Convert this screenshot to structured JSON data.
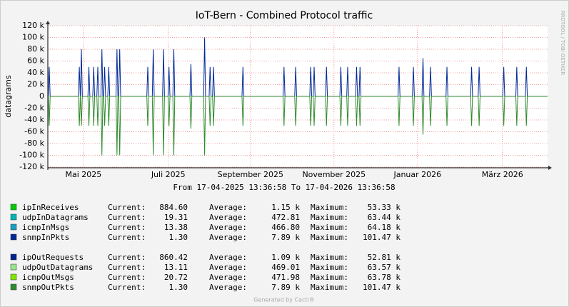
{
  "chart_data": {
    "type": "line",
    "title": "IoT-Bern - Combined Protocol traffic",
    "subtitle": "From 17-04-2025 13:36:58 To 17-04-2026 13:36:58",
    "y_label": "datagrams",
    "watermark": "RRDTOOL / TOBI OETIKER",
    "footer": "Generated by Cacti®",
    "legend_labels": {
      "current": "Current:",
      "average": "Average:",
      "maximum": "Maximum:"
    },
    "grid": true,
    "xlim": [
      0,
      365
    ],
    "xticks": [
      {
        "value": 26,
        "label": "Mai 2025"
      },
      {
        "value": 88,
        "label": "Juli 2025"
      },
      {
        "value": 148,
        "label": "September 2025"
      },
      {
        "value": 209,
        "label": "November 2025"
      },
      {
        "value": 270,
        "label": "Januar 2026"
      },
      {
        "value": 332,
        "label": "März 2026"
      }
    ],
    "ylim": [
      -120000,
      120000
    ],
    "yticks": [
      {
        "value": -120000,
        "label": "-120 k"
      },
      {
        "value": -100000,
        "label": "-100 k"
      },
      {
        "value": -80000,
        "label": "-80 k"
      },
      {
        "value": -60000,
        "label": "-60 k"
      },
      {
        "value": -40000,
        "label": "-40 k"
      },
      {
        "value": -20000,
        "label": "-20 k"
      },
      0,
      {
        "value": 20000,
        "label": "20 k"
      },
      {
        "value": 40000,
        "label": "40 k"
      },
      {
        "value": 60000,
        "label": "60 k"
      },
      {
        "value": 80000,
        "label": "80 k"
      },
      {
        "value": 100000,
        "label": "100 k"
      },
      {
        "value": 120000,
        "label": "120 k"
      }
    ],
    "x": [
      0,
      0.3,
      1,
      1.7,
      22.3,
      23,
      23.7,
      23.8,
      24.5,
      25.2,
      29.3,
      30,
      30.7,
      32.8,
      33.5,
      34.2,
      35.8,
      36.5,
      37.2,
      38.8,
      39.5,
      40.2,
      40.8,
      41.5,
      42.2,
      43.8,
      44.5,
      45.2,
      49.8,
      50.5,
      51.2,
      51.8,
      52.5,
      53.2,
      72.3,
      73,
      73.7,
      76.3,
      77,
      77.7,
      83.8,
      84.5,
      85.2,
      87.8,
      88.5,
      89.2,
      91.3,
      92,
      92.7,
      103.8,
      104.5,
      105.2,
      113.8,
      114.5,
      115.2,
      117.8,
      118.5,
      119.2,
      120.3,
      121,
      121.7,
      141.8,
      142.5,
      143.2,
      171.8,
      172.5,
      173.2,
      180.3,
      181,
      181.7,
      191.3,
      192,
      192.7,
      193.8,
      194.5,
      195.2,
      202.8,
      203.5,
      204.2,
      213.3,
      214,
      214.7,
      218.3,
      219,
      219.7,
      224.8,
      225.5,
      226.2,
      227.3,
      228,
      228.7,
      255.8,
      256.5,
      257.2,
      266.3,
      267,
      267.7,
      273.3,
      274,
      274.7,
      278.8,
      279.5,
      280.2,
      290.8,
      291.5,
      292.2,
      308.8,
      309.5,
      310.2,
      314.3,
      315,
      315.7,
      332.3,
      333,
      333.7,
      341.8,
      342.5,
      343.2,
      348.8,
      349.5,
      350.2,
      365
    ],
    "series": [
      {
        "name": "ipInReceives",
        "color": "#00cc00",
        "current": "884.60",
        "average": "1.15 k",
        "maximum": "53.33 k"
      },
      {
        "name": "udpInDatagrams",
        "color": "#00b5b5",
        "current": "19.31",
        "average": "472.81",
        "maximum": "63.44 k"
      },
      {
        "name": "icmpInMsgs",
        "color": "#1a9fbf",
        "current": "13.38",
        "average": "466.80",
        "maximum": "64.18 k"
      },
      {
        "name": "snmpInPkts",
        "color": "#002a97",
        "current": "1.30",
        "average": "7.89 k",
        "maximum": "101.47 k",
        "values": [
          0,
          0,
          50000,
          0,
          0,
          50000,
          0,
          0,
          80000,
          0,
          0,
          50000,
          0,
          0,
          50000,
          0,
          0,
          50000,
          0,
          0,
          80000,
          0,
          0,
          50000,
          0,
          0,
          50000,
          0,
          0,
          80000,
          0,
          0,
          80000,
          0,
          0,
          50000,
          0,
          0,
          80000,
          0,
          0,
          80000,
          0,
          0,
          50000,
          0,
          0,
          80000,
          0,
          0,
          55000,
          0,
          0,
          100000,
          0,
          0,
          50000,
          0,
          0,
          50000,
          0,
          0,
          50000,
          0,
          0,
          50000,
          0,
          0,
          50000,
          0,
          0,
          50000,
          0,
          0,
          50000,
          0,
          0,
          50000,
          0,
          0,
          50000,
          0,
          0,
          50000,
          0,
          0,
          50000,
          0,
          0,
          50000,
          0,
          0,
          50000,
          0,
          0,
          50000,
          0,
          0,
          65000,
          0,
          0,
          50000,
          0,
          0,
          50000,
          0,
          0,
          50000,
          0,
          0,
          50000,
          0,
          0,
          50000,
          0,
          0,
          50000,
          0,
          0,
          50000,
          0,
          0
        ]
      },
      {
        "name": "ipOutRequests",
        "color": "#00248f",
        "current": "860.42",
        "average": "1.09 k",
        "maximum": "52.81 k"
      },
      {
        "name": "udpOutDatagrams",
        "color": "#96e78a",
        "current": "13.11",
        "average": "469.01",
        "maximum": "63.57 k"
      },
      {
        "name": "icmpOutMsgs",
        "color": "#7ee600",
        "current": "20.72",
        "average": "471.98",
        "maximum": "63.78 k"
      },
      {
        "name": "snmpOutPkts",
        "color": "#2e8b2e",
        "current": "1.30",
        "average": "7.89 k",
        "maximum": "101.47 k",
        "values": [
          0,
          0,
          -50000,
          0,
          0,
          -50000,
          0,
          0,
          -50000,
          0,
          0,
          -50000,
          0,
          0,
          -50000,
          0,
          0,
          -50000,
          0,
          0,
          -100000,
          0,
          0,
          -50000,
          0,
          0,
          -50000,
          0,
          0,
          -100000,
          0,
          0,
          -100000,
          0,
          0,
          -50000,
          0,
          0,
          -100000,
          0,
          0,
          -100000,
          0,
          0,
          -50000,
          0,
          0,
          -100000,
          0,
          0,
          -55000,
          0,
          0,
          -100000,
          0,
          0,
          -50000,
          0,
          0,
          -50000,
          0,
          0,
          -50000,
          0,
          0,
          -50000,
          0,
          0,
          -50000,
          0,
          0,
          -50000,
          0,
          0,
          -50000,
          0,
          0,
          -50000,
          0,
          0,
          -50000,
          0,
          0,
          -50000,
          0,
          0,
          -50000,
          0,
          0,
          -50000,
          0,
          0,
          -50000,
          0,
          0,
          -50000,
          0,
          0,
          -65000,
          0,
          0,
          -50000,
          0,
          0,
          -50000,
          0,
          0,
          -50000,
          0,
          0,
          -50000,
          0,
          0,
          -50000,
          0,
          0,
          -50000,
          0,
          0,
          -50000,
          0,
          0
        ]
      }
    ]
  }
}
